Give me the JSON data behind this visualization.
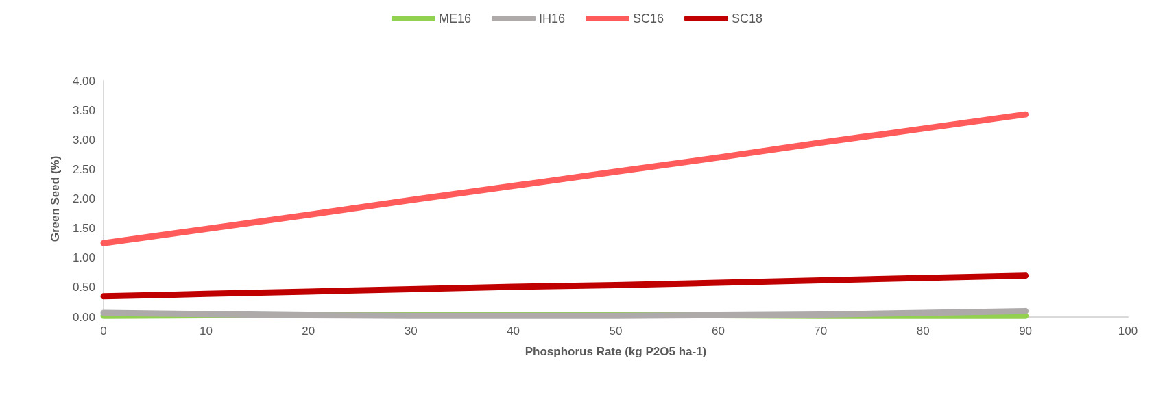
{
  "chart_data": {
    "type": "line",
    "xlabel": "Phosphorus Rate (kg P2O5 ha-1)",
    "ylabel": "Green Seed (%)",
    "x": [
      0,
      10,
      20,
      30,
      40,
      50,
      60,
      70,
      80,
      90
    ],
    "series": [
      {
        "name": "ME16",
        "color": "#92d050",
        "values": [
          0.02,
          0.03,
          0.03,
          0.03,
          0.03,
          0.03,
          0.03,
          0.02,
          0.02,
          0.02
        ]
      },
      {
        "name": "IH16",
        "color": "#aeaaaa",
        "values": [
          0.07,
          0.05,
          0.03,
          0.02,
          0.02,
          0.02,
          0.03,
          0.04,
          0.07,
          0.1
        ]
      },
      {
        "name": "SC16",
        "color": "#ff5b5b",
        "values": [
          1.25,
          1.49,
          1.73,
          1.98,
          2.22,
          2.46,
          2.7,
          2.95,
          3.19,
          3.43
        ]
      },
      {
        "name": "SC18",
        "color": "#c00000",
        "values": [
          0.35,
          0.39,
          0.43,
          0.47,
          0.51,
          0.54,
          0.58,
          0.62,
          0.66,
          0.7
        ]
      }
    ],
    "xlim": [
      0,
      100
    ],
    "xticks": [
      0,
      10,
      20,
      30,
      40,
      50,
      60,
      70,
      80,
      90,
      100
    ],
    "ylim": [
      0,
      4
    ],
    "yticks": [
      {
        "value": 0,
        "label": "0.00"
      },
      {
        "value": 0.5,
        "label": "0.50"
      },
      {
        "value": 1,
        "label": "1.00"
      },
      {
        "value": 1.5,
        "label": "1.50"
      },
      {
        "value": 2,
        "label": "2.00"
      },
      {
        "value": 2.5,
        "label": "2.50"
      },
      {
        "value": 3,
        "label": "3.00"
      },
      {
        "value": 3.5,
        "label": "3.50"
      },
      {
        "value": 4,
        "label": "4.00"
      }
    ],
    "grid": false,
    "legend": "top",
    "marker": "none",
    "line_style": "solid"
  }
}
